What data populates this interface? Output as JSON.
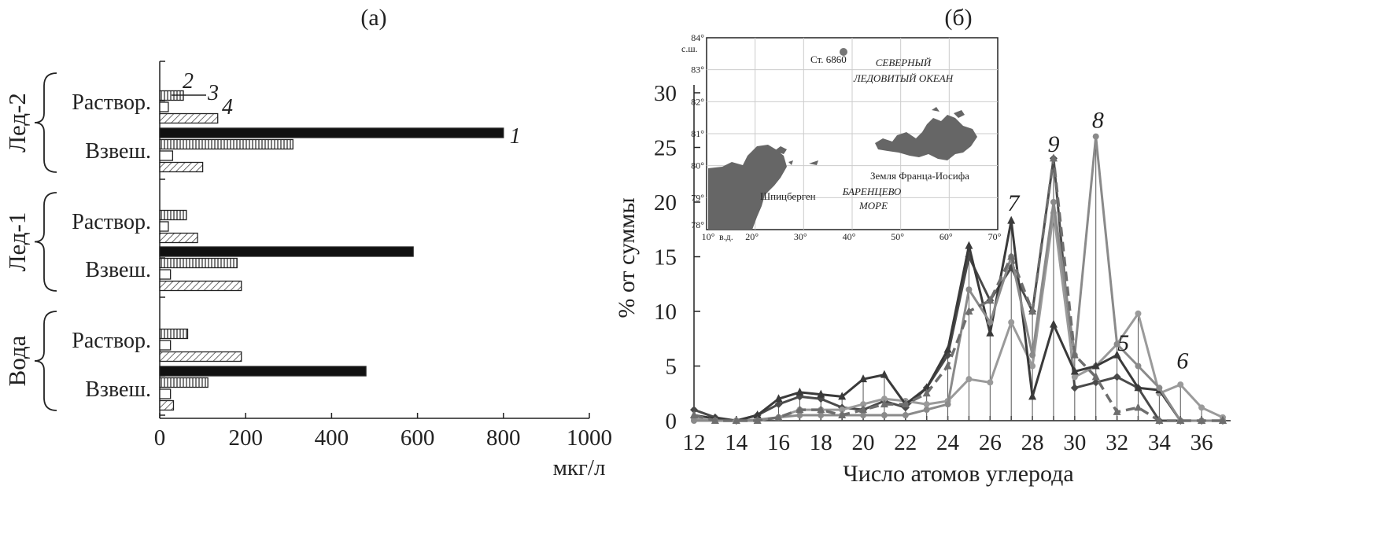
{
  "chart_data": [
    {
      "type": "bar",
      "panel": "(а)",
      "orientation": "horizontal",
      "xlabel": "мкг/л",
      "xlim": [
        0,
        1000
      ],
      "xticks": [
        0,
        200,
        400,
        600,
        800,
        1000
      ],
      "groups": [
        {
          "name": "Лед-2",
          "rows": [
            {
              "label": "Раствор.",
              "values": [
                0,
                55,
                20,
                135
              ]
            },
            {
              "label": "Взвеш.",
              "values": [
                800,
                310,
                30,
                100
              ]
            }
          ]
        },
        {
          "name": "Лед-1",
          "rows": [
            {
              "label": "Раствор.",
              "values": [
                0,
                62,
                20,
                88
              ]
            },
            {
              "label": "Взвеш.",
              "values": [
                590,
                180,
                25,
                190
              ]
            }
          ]
        },
        {
          "name": "Вода",
          "rows": [
            {
              "label": "Раствор.",
              "values": [
                0,
                65,
                25,
                190
              ]
            },
            {
              "label": "Взвеш.",
              "values": [
                480,
                112,
                25,
                32
              ]
            }
          ]
        }
      ],
      "series": [
        {
          "name": "1",
          "fill": "solid"
        },
        {
          "name": "2",
          "fill": "vertical-hatch"
        },
        {
          "name": "3",
          "fill": "empty"
        },
        {
          "name": "4",
          "fill": "diagonal-hatch"
        }
      ]
    },
    {
      "type": "line",
      "panel": "(б)",
      "xlabel": "Число атомов углерода",
      "ylabel": "% от суммы",
      "xlim": [
        12,
        37
      ],
      "ylim": [
        0,
        30
      ],
      "xticks": [
        12,
        14,
        16,
        18,
        20,
        22,
        24,
        26,
        28,
        30,
        32,
        34,
        36
      ],
      "yticks": [
        0,
        5,
        10,
        15,
        20,
        25,
        30
      ],
      "x": [
        12,
        13,
        14,
        15,
        16,
        17,
        18,
        19,
        20,
        21,
        22,
        23,
        24,
        25,
        26,
        27,
        28,
        29,
        30,
        31,
        32,
        33,
        34,
        35,
        36,
        37
      ],
      "series": [
        {
          "name": "5",
          "color": "#4a4a4a",
          "values": [
            1,
            0.3,
            0,
            0.5,
            1.5,
            2.2,
            2,
            1.2,
            1,
            1.8,
            1.2,
            3,
            6,
            15,
            11,
            14,
            10,
            24,
            3,
            3.5,
            4,
            3,
            0,
            0,
            0,
            0
          ]
        },
        {
          "name": "6",
          "color": "#9a9a9a",
          "values": [
            0.2,
            0,
            0,
            0.1,
            0.3,
            1,
            1,
            1,
            1.5,
            2,
            1.8,
            1.5,
            1.8,
            3.8,
            3.5,
            9,
            5,
            19,
            4,
            5,
            7,
            9.8,
            2.5,
            3.3,
            1.2,
            0.3
          ]
        },
        {
          "name": "7",
          "color": "#3a3a3a",
          "values": [
            0.5,
            0.2,
            0,
            0.5,
            2,
            2.6,
            2.4,
            2.2,
            3.8,
            4.2,
            1.5,
            3,
            6.5,
            16,
            8,
            18.3,
            2.2,
            8.8,
            4.5,
            5,
            6,
            3,
            2.8,
            0,
            0,
            0
          ]
        },
        {
          "name": "8",
          "color": "#8a8a8a",
          "values": [
            0,
            0,
            0,
            0,
            0.3,
            0.5,
            0.5,
            0.5,
            0.5,
            0.5,
            0.5,
            1,
            1.5,
            12,
            9,
            15,
            6,
            20,
            6,
            26,
            7,
            5,
            3,
            0,
            0,
            0
          ]
        },
        {
          "name": "9",
          "color": "#6e6e6e",
          "dashed": true,
          "values": [
            0.5,
            0,
            0,
            0,
            0.3,
            1,
            1,
            0.5,
            1,
            1.5,
            1.5,
            2.5,
            5,
            10,
            11,
            15,
            10,
            24,
            6,
            4,
            0.8,
            1.2,
            0,
            0,
            0,
            0
          ]
        }
      ],
      "inset_map": {
        "lat_labels": [
          "78°",
          "79°",
          "80°",
          "81°",
          "82°",
          "83°",
          "84°"
        ],
        "lat_unit": "с.ш.",
        "lon_labels": [
          "10°",
          "20°",
          "30°",
          "40°",
          "50°",
          "60°",
          "70°"
        ],
        "lon_unit": "в.д.",
        "station": "Ст. 6860",
        "ocean": [
          "СЕВЕРНЫЙ",
          "ЛЕДОВИТЫЙ ОКЕАН"
        ],
        "sea": [
          "БАРЕНЦЕВО",
          "МОРЕ"
        ],
        "land1": "Шпицберген",
        "land2": "Земля Франца-Иосифа"
      }
    }
  ]
}
